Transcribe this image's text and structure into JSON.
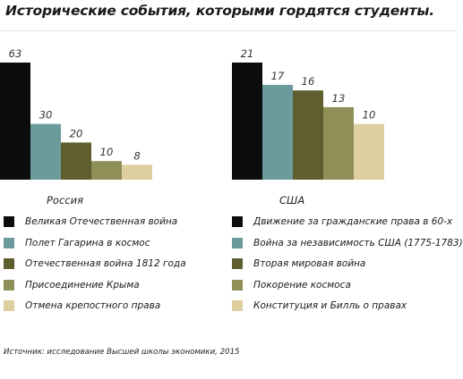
{
  "title": "Исторические события, которыми гордятся студенты.",
  "source": "Источник: исследование Высшей школы экономики, 2015",
  "chart_data": [
    {
      "type": "bar",
      "xlabel": "Россия",
      "categories": [
        "Великая Отечественная война",
        "Полет Гагарина в космос",
        "Отечественная война 1812 года",
        "Присоединение Крыма",
        "Отмена крепостного права"
      ],
      "values": [
        63,
        30,
        20,
        10,
        8
      ],
      "colors": [
        "#0d0d0d",
        "#6c9b9d",
        "#5e5e2f",
        "#8f8f58",
        "#ddcf9e"
      ],
      "legend_position": "below"
    },
    {
      "type": "bar",
      "xlabel": "США",
      "categories": [
        "Движение за гражданские права в 60-х",
        "Война за независимость США (1775-1783)",
        "Вторая мировая война",
        "Покорение космоса",
        "Конституция и Билль о правах"
      ],
      "values": [
        21,
        17,
        16,
        13,
        10
      ],
      "colors": [
        "#0d0d0d",
        "#6c9b9d",
        "#5e5e2f",
        "#8f8f58",
        "#ddcf9e"
      ],
      "legend_position": "below"
    }
  ]
}
